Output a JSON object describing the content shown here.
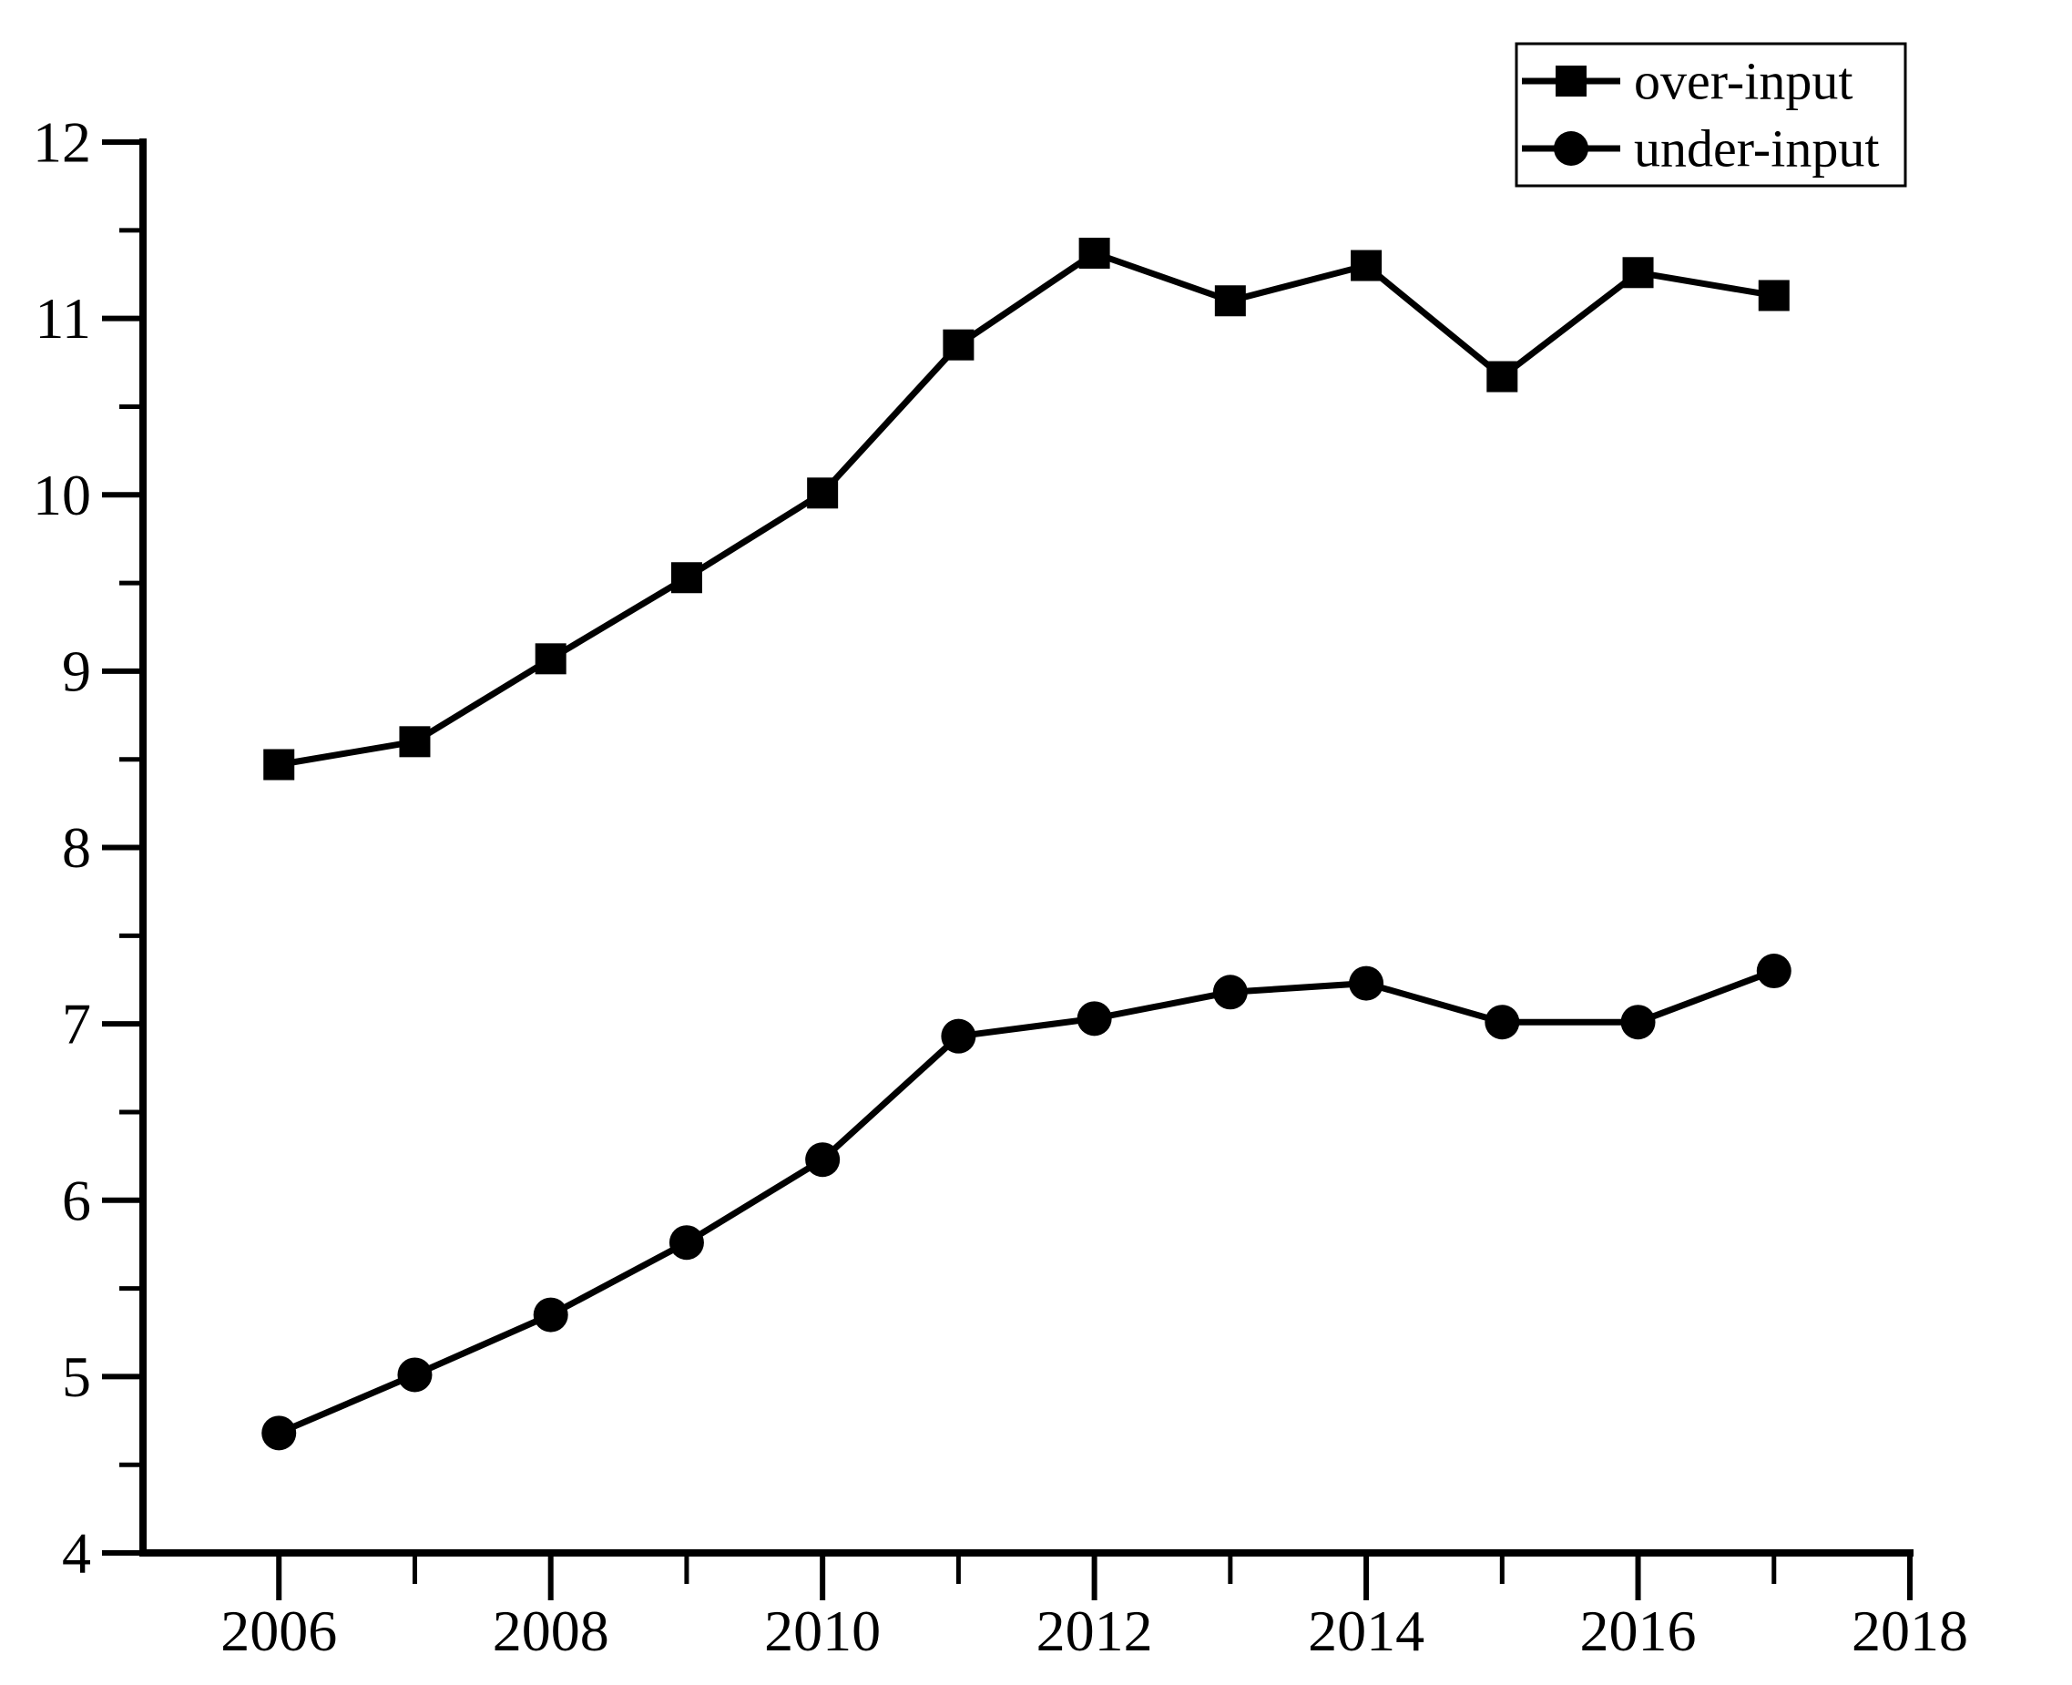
{
  "chart_data": {
    "type": "line",
    "title": "",
    "xlabel": "",
    "ylabel": "",
    "x": [
      2006,
      2007,
      2008,
      2009,
      2010,
      2011,
      2012,
      2013,
      2014,
      2015,
      2016,
      2017
    ],
    "series": [
      {
        "name": "over-input",
        "marker": "square",
        "color": "#000000",
        "values": [
          8.47,
          8.6,
          9.07,
          9.53,
          10.01,
          10.85,
          11.37,
          11.1,
          11.3,
          10.67,
          11.26,
          11.13
        ]
      },
      {
        "name": "under-input",
        "marker": "circle",
        "color": "#000000",
        "values": [
          4.68,
          5.01,
          5.35,
          5.76,
          6.23,
          6.93,
          7.03,
          7.18,
          7.23,
          7.01,
          7.01,
          7.3
        ]
      }
    ],
    "xlim": [
      2005,
      2018
    ],
    "ylim": [
      4,
      12
    ],
    "x_major_ticks": [
      2006,
      2008,
      2010,
      2012,
      2014,
      2016,
      2018
    ],
    "x_tick_labels": [
      "2006",
      "2008",
      "2010",
      "2012",
      "2014",
      "2016",
      "2018"
    ],
    "x_minor_ticks": [
      2007,
      2009,
      2011,
      2013,
      2015,
      2017
    ],
    "y_major_ticks": [
      4,
      5,
      6,
      7,
      8,
      9,
      10,
      11,
      12
    ],
    "y_tick_labels": [
      "4",
      "5",
      "6",
      "7",
      "8",
      "9",
      "10",
      "11",
      "12"
    ],
    "y_minor_ticks": [
      4.5,
      5.5,
      6.5,
      7.5,
      8.5,
      9.5,
      10.5,
      11.5
    ],
    "grid": false,
    "legend_position": "top-right",
    "line_color": "#000000",
    "background": "#ffffff"
  },
  "legend": {
    "items": [
      {
        "label": "over-input",
        "marker": "square"
      },
      {
        "label": "under-input",
        "marker": "circle"
      }
    ]
  }
}
